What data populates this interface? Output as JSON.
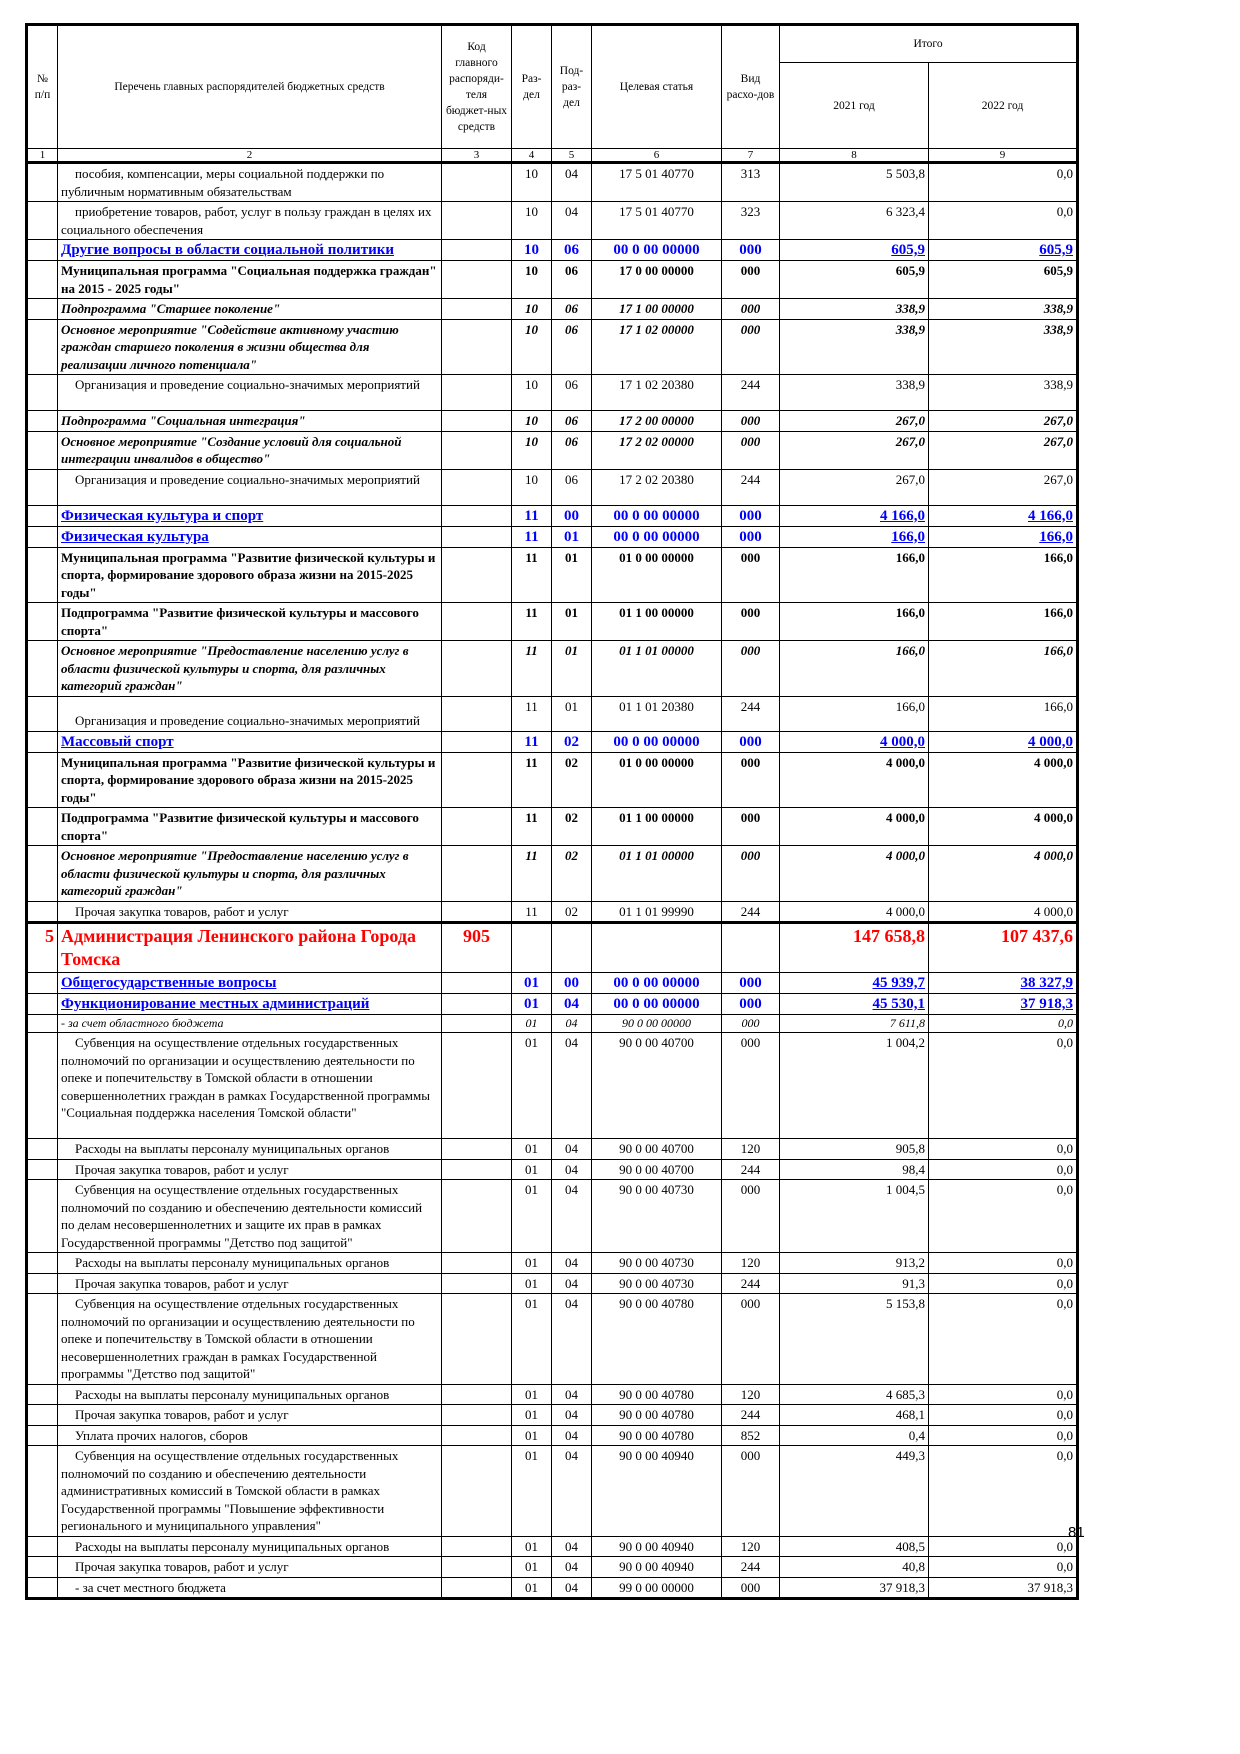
{
  "header": {
    "num": "№ п/п",
    "name": "Перечень главных распорядителей бюджетных средств",
    "code": "Код главного распоряди-теля бюджет-ных средств",
    "razdel": "Раз-дел",
    "podrazdel": "Под-раз-дел",
    "target": "Целевая статья",
    "vid": "Вид расхо-дов",
    "total": "Итого",
    "y2021": "2021 год",
    "y2022": "2022 год",
    "col_numbers": [
      "1",
      "2",
      "3",
      "4",
      "5",
      "6",
      "7",
      "8",
      "9"
    ]
  },
  "rows": [
    {
      "style": "n",
      "num": "",
      "name": "пособия, компенсации, меры социальной поддержки по публичным нормативным обязательствам",
      "code": "",
      "rz": "10",
      "prz": "04",
      "cs": "17 5 01 40770",
      "vr": "313",
      "v2021": "5 503,8",
      "v2022": "0,0"
    },
    {
      "style": "n",
      "num": "",
      "name": "приобретение товаров, работ, услуг в пользу граждан в целях их социального обеспечения",
      "code": "",
      "rz": "10",
      "prz": "04",
      "cs": "17 5 01 40770",
      "vr": "323",
      "v2021": "6 323,4",
      "v2022": "0,0"
    },
    {
      "style": "blue",
      "num": "",
      "name": "Другие вопросы в области социальной политики",
      "code": "",
      "rz": "10",
      "prz": "06",
      "cs": "00 0 00 00000",
      "vr": "000",
      "v2021": "605,9",
      "v2022": "605,9"
    },
    {
      "style": "b",
      "num": "",
      "name": "Муниципальная программа \"Социальная поддержка граждан\" на 2015 - 2025 годы\"",
      "code": "",
      "rz": "10",
      "prz": "06",
      "cs": "17 0 00 00000",
      "vr": "000",
      "v2021": "605,9",
      "v2022": "605,9"
    },
    {
      "style": "bi",
      "num": "",
      "name": "Подпрограмма \"Старшее поколение\"",
      "code": "",
      "rz": "10",
      "prz": "06",
      "cs": "17 1 00 00000",
      "vr": "000",
      "v2021": "338,9",
      "v2022": "338,9"
    },
    {
      "style": "bi",
      "num": "",
      "name": "Основное мероприятие \"Содействие активному участию граждан старшего поколения в жизни общества для реализации личного потенциала\"",
      "code": "",
      "rz": "10",
      "prz": "06",
      "cs": "17 1 02 00000",
      "vr": "000",
      "v2021": "338,9",
      "v2022": "338,9"
    },
    {
      "style": "n",
      "num": "",
      "name": "Организация и проведение социально-значимых мероприятий",
      "code": "",
      "rz": "10",
      "prz": "06",
      "cs": "17 1 02 20380",
      "vr": "244",
      "v2021": "338,9",
      "v2022": "338,9"
    },
    {
      "style": "bi",
      "num": "",
      "name": "Подпрограмма \"Социальная интеграция\"",
      "code": "",
      "rz": "10",
      "prz": "06",
      "cs": "17 2 00 00000",
      "vr": "000",
      "v2021": "267,0",
      "v2022": "267,0"
    },
    {
      "style": "bi",
      "num": "",
      "name": "Основное мероприятие \"Создание условий для социальной интеграции инвалидов в общество\"",
      "code": "",
      "rz": "10",
      "prz": "06",
      "cs": "17 2 02 00000",
      "vr": "000",
      "v2021": "267,0",
      "v2022": "267,0"
    },
    {
      "style": "n",
      "num": "",
      "name": "Организация и проведение социально-значимых мероприятий",
      "code": "",
      "rz": "10",
      "prz": "06",
      "cs": "17 2 02 20380",
      "vr": "244",
      "v2021": "267,0",
      "v2022": "267,0"
    },
    {
      "style": "blue",
      "num": "",
      "name": "Физическая культура и спорт",
      "code": "",
      "rz": "11",
      "prz": "00",
      "cs": "00 0 00 00000",
      "vr": "000",
      "v2021": "4 166,0",
      "v2022": "4 166,0"
    },
    {
      "style": "blue",
      "num": "",
      "name": "Физическая культура",
      "code": "",
      "rz": "11",
      "prz": "01",
      "cs": "00 0 00 00000",
      "vr": "000",
      "v2021": "166,0",
      "v2022": "166,0"
    },
    {
      "style": "b",
      "num": "",
      "name": "Муниципальная программа \"Развитие физической культуры и спорта, формирование здорового образа жизни на 2015-2025 годы\"",
      "code": "",
      "rz": "11",
      "prz": "01",
      "cs": "01 0 00 00000",
      "vr": "000",
      "v2021": "166,0",
      "v2022": "166,0"
    },
    {
      "style": "b",
      "num": "",
      "name": "Подпрограмма \"Развитие физической культуры и массового спорта\"",
      "code": "",
      "rz": "11",
      "prz": "01",
      "cs": "01 1 00 00000",
      "vr": "000",
      "v2021": "166,0",
      "v2022": "166,0"
    },
    {
      "style": "bi",
      "num": "",
      "name": "Основное мероприятие \"Предоставление населению услуг в области физической культуры и спорта, для различных категорий граждан\"",
      "code": "",
      "rz": "11",
      "prz": "01",
      "cs": "01 1 01 00000",
      "vr": "000",
      "v2021": "166,0",
      "v2022": "166,0"
    },
    {
      "style": "n",
      "num": "",
      "name": "Организация и проведение социально-значимых мероприятий",
      "code": "",
      "rz": "11",
      "prz": "01",
      "cs": "01 1 01 20380",
      "vr": "244",
      "v2021": "166,0",
      "v2022": "166,0"
    },
    {
      "style": "blue",
      "num": "",
      "name": "Массовый спорт",
      "code": "",
      "rz": "11",
      "prz": "02",
      "cs": "00 0 00 00000",
      "vr": "000",
      "v2021": "4 000,0",
      "v2022": "4 000,0"
    },
    {
      "style": "b",
      "num": "",
      "name": "Муниципальная программа \"Развитие физической культуры и спорта, формирование здорового образа жизни на 2015-2025 годы\"",
      "code": "",
      "rz": "11",
      "prz": "02",
      "cs": "01 0 00 00000",
      "vr": "000",
      "v2021": "4 000,0",
      "v2022": "4 000,0"
    },
    {
      "style": "b",
      "num": "",
      "name": "Подпрограмма \"Развитие физической культуры и массового спорта\"",
      "code": "",
      "rz": "11",
      "prz": "02",
      "cs": "01 1 00 00000",
      "vr": "000",
      "v2021": "4 000,0",
      "v2022": "4 000,0"
    },
    {
      "style": "bi",
      "num": "",
      "name": "Основное мероприятие \"Предоставление населению услуг в области физической культуры и спорта, для различных категорий граждан\"",
      "code": "",
      "rz": "11",
      "prz": "02",
      "cs": "01 1 01 00000",
      "vr": "000",
      "v2021": "4 000,0",
      "v2022": "4 000,0"
    },
    {
      "style": "n",
      "num": "",
      "name": "Прочая закупка товаров, работ и услуг",
      "code": "",
      "rz": "11",
      "prz": "02",
      "cs": "01 1 01 99990",
      "vr": "244",
      "v2021": "4 000,0",
      "v2022": "4 000,0"
    },
    {
      "style": "red",
      "num": "5",
      "name": "Администрация Ленинского района Города Томска",
      "code": "905",
      "rz": "",
      "prz": "",
      "cs": "",
      "vr": "",
      "v2021": "147 658,8",
      "v2022": "107 437,6"
    },
    {
      "style": "blue",
      "num": "",
      "name": "Общегосударственные вопросы",
      "code": "",
      "rz": "01",
      "prz": "00",
      "cs": "00 0 00 00000",
      "vr": "000",
      "v2021": "45 939,7",
      "v2022": "38 327,9"
    },
    {
      "style": "blue",
      "num": "",
      "name": "Функционирование местных администраций",
      "code": "",
      "rz": "01",
      "prz": "04",
      "cs": "00 0 00 00000",
      "vr": "000",
      "v2021": "45 530,1",
      "v2022": "37 918,3"
    },
    {
      "style": "i",
      "num": "",
      "name": "- за счет областного бюджета",
      "code": "",
      "rz": "01",
      "prz": "04",
      "cs": "90 0 00 00000",
      "vr": "000",
      "v2021": "7 611,8",
      "v2022": "0,0"
    },
    {
      "style": "n",
      "num": "",
      "name": "Субвенция на осуществление отдельных государственных полномочий по организации и осуществлению деятельности по опеке и попечительству в Томской области в отношении совершеннолетних граждан в рамках Государственной программы \"Социальная поддержка населения Томской области\"",
      "code": "",
      "rz": "01",
      "prz": "04",
      "cs": "90 0 00 40700",
      "vr": "000",
      "v2021": "1 004,2",
      "v2022": "0,0"
    },
    {
      "style": "n",
      "num": "",
      "name": "Расходы на выплаты персоналу муниципальных органов",
      "code": "",
      "rz": "01",
      "prz": "04",
      "cs": "90 0 00 40700",
      "vr": "120",
      "v2021": "905,8",
      "v2022": "0,0"
    },
    {
      "style": "n",
      "num": "",
      "name": "Прочая закупка товаров, работ и услуг",
      "code": "",
      "rz": "01",
      "prz": "04",
      "cs": "90 0 00 40700",
      "vr": "244",
      "v2021": "98,4",
      "v2022": "0,0"
    },
    {
      "style": "n",
      "num": "",
      "name": "Субвенция на осуществление отдельных государственных полномочий по созданию и обеспечению деятельности комиссий по делам несовершеннолетних и защите их прав в рамках Государственной программы \"Детство под защитой\"",
      "code": "",
      "rz": "01",
      "prz": "04",
      "cs": "90 0 00 40730",
      "vr": "000",
      "v2021": "1 004,5",
      "v2022": "0,0"
    },
    {
      "style": "n",
      "num": "",
      "name": "Расходы на выплаты персоналу муниципальных органов",
      "code": "",
      "rz": "01",
      "prz": "04",
      "cs": "90 0 00 40730",
      "vr": "120",
      "v2021": "913,2",
      "v2022": "0,0"
    },
    {
      "style": "n",
      "num": "",
      "name": "Прочая закупка товаров, работ и услуг",
      "code": "",
      "rz": "01",
      "prz": "04",
      "cs": "90 0 00 40730",
      "vr": "244",
      "v2021": "91,3",
      "v2022": "0,0"
    },
    {
      "style": "n",
      "num": "",
      "name": "Субвенция на осуществление отдельных государственных полномочий по организации и осуществлению деятельности по опеке и попечительству в Томской области в отношении несовершеннолетних граждан в рамках Государственной программы \"Детство под защитой\"",
      "code": "",
      "rz": "01",
      "prz": "04",
      "cs": "90 0 00 40780",
      "vr": "000",
      "v2021": "5 153,8",
      "v2022": "0,0"
    },
    {
      "style": "n",
      "num": "",
      "name": "Расходы на выплаты персоналу муниципальных органов",
      "code": "",
      "rz": "01",
      "prz": "04",
      "cs": "90 0 00 40780",
      "vr": "120",
      "v2021": "4 685,3",
      "v2022": "0,0"
    },
    {
      "style": "n",
      "num": "",
      "name": "Прочая закупка товаров, работ и услуг",
      "code": "",
      "rz": "01",
      "prz": "04",
      "cs": "90 0 00 40780",
      "vr": "244",
      "v2021": "468,1",
      "v2022": "0,0"
    },
    {
      "style": "n",
      "num": "",
      "name": "Уплата прочих налогов, сборов",
      "code": "",
      "rz": "01",
      "prz": "04",
      "cs": "90 0 00 40780",
      "vr": "852",
      "v2021": "0,4",
      "v2022": "0,0"
    },
    {
      "style": "n",
      "num": "",
      "name": "Субвенция на осуществление отдельных государственных полномочий по созданию и обеспечению деятельности административных комиссий в Томской области в рамках Государственной программы \"Повышение эффективности регионального и муниципального управления\"",
      "code": "",
      "rz": "01",
      "prz": "04",
      "cs": "90 0 00 40940",
      "vr": "000",
      "v2021": "449,3",
      "v2022": "0,0"
    },
    {
      "style": "n",
      "num": "",
      "name": "Расходы на выплаты персоналу муниципальных органов",
      "code": "",
      "rz": "01",
      "prz": "04",
      "cs": "90 0 00 40940",
      "vr": "120",
      "v2021": "408,5",
      "v2022": "0,0"
    },
    {
      "style": "n",
      "num": "",
      "name": "Прочая закупка товаров, работ и услуг",
      "code": "",
      "rz": "01",
      "prz": "04",
      "cs": "90 0 00 40940",
      "vr": "244",
      "v2021": "40,8",
      "v2022": "0,0"
    },
    {
      "style": "n",
      "num": "",
      "name": "- за счет местного бюджета",
      "code": "",
      "rz": "01",
      "prz": "04",
      "cs": "99 0 00 00000",
      "vr": "000",
      "v2021": "37 918,3",
      "v2022": "37 918,3"
    }
  ],
  "page_number": "81"
}
